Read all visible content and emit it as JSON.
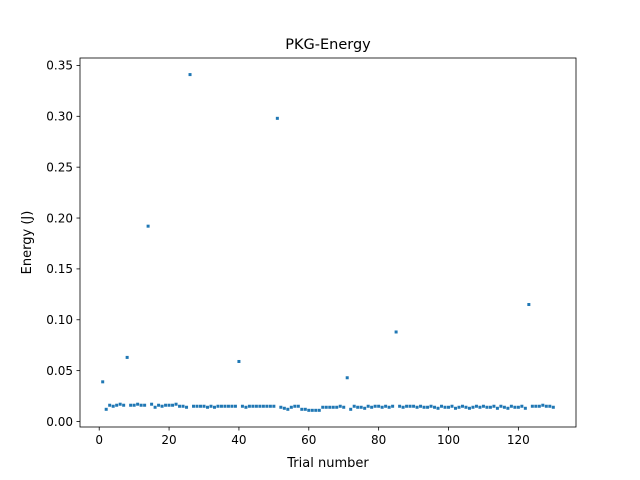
{
  "chart_data": {
    "type": "scatter",
    "title": "PKG-Energy",
    "xlabel": "Trial number",
    "ylabel": "Energy (J)",
    "xlim": [
      -5.5,
      136.5
    ],
    "ylim": [
      -0.0054,
      0.3573
    ],
    "xticks": [
      0,
      20,
      40,
      60,
      80,
      100,
      120
    ],
    "yticks": [
      0.0,
      0.05,
      0.1,
      0.15,
      0.2,
      0.25,
      0.3,
      0.35
    ],
    "ytick_labels": [
      "0.00",
      "0.05",
      "0.10",
      "0.15",
      "0.20",
      "0.25",
      "0.30",
      "0.35"
    ],
    "grid": false,
    "marker_color": "#1f77b4",
    "x": [
      1,
      2,
      3,
      4,
      5,
      6,
      7,
      8,
      9,
      10,
      11,
      12,
      13,
      14,
      15,
      16,
      17,
      18,
      19,
      20,
      21,
      22,
      23,
      24,
      25,
      26,
      27,
      28,
      29,
      30,
      31,
      32,
      33,
      34,
      35,
      36,
      37,
      38,
      39,
      40,
      41,
      42,
      43,
      44,
      45,
      46,
      47,
      48,
      49,
      50,
      51,
      52,
      53,
      54,
      55,
      56,
      57,
      58,
      59,
      60,
      61,
      62,
      63,
      64,
      65,
      66,
      67,
      68,
      69,
      70,
      71,
      72,
      73,
      74,
      75,
      76,
      77,
      78,
      79,
      80,
      81,
      82,
      83,
      84,
      85,
      86,
      87,
      88,
      89,
      90,
      91,
      92,
      93,
      94,
      95,
      96,
      97,
      98,
      99,
      100,
      101,
      102,
      103,
      104,
      105,
      106,
      107,
      108,
      109,
      110,
      111,
      112,
      113,
      114,
      115,
      116,
      117,
      118,
      119,
      120,
      121,
      122,
      123,
      124,
      125,
      126,
      127,
      128,
      129,
      130
    ],
    "y": [
      0.039,
      0.012,
      0.016,
      0.015,
      0.016,
      0.017,
      0.016,
      0.063,
      0.016,
      0.016,
      0.017,
      0.016,
      0.016,
      0.192,
      0.017,
      0.014,
      0.016,
      0.015,
      0.016,
      0.016,
      0.016,
      0.017,
      0.015,
      0.015,
      0.014,
      0.341,
      0.015,
      0.015,
      0.015,
      0.015,
      0.014,
      0.015,
      0.014,
      0.015,
      0.015,
      0.015,
      0.015,
      0.015,
      0.015,
      0.059,
      0.015,
      0.014,
      0.015,
      0.015,
      0.015,
      0.015,
      0.015,
      0.015,
      0.015,
      0.015,
      0.298,
      0.014,
      0.013,
      0.012,
      0.014,
      0.015,
      0.015,
      0.012,
      0.012,
      0.011,
      0.011,
      0.011,
      0.011,
      0.014,
      0.014,
      0.014,
      0.014,
      0.014,
      0.015,
      0.014,
      0.043,
      0.012,
      0.015,
      0.014,
      0.014,
      0.013,
      0.015,
      0.014,
      0.015,
      0.015,
      0.014,
      0.015,
      0.014,
      0.015,
      0.088,
      0.015,
      0.014,
      0.015,
      0.015,
      0.015,
      0.014,
      0.015,
      0.014,
      0.014,
      0.015,
      0.014,
      0.013,
      0.015,
      0.014,
      0.014,
      0.015,
      0.013,
      0.014,
      0.015,
      0.014,
      0.013,
      0.014,
      0.015,
      0.014,
      0.015,
      0.014,
      0.014,
      0.015,
      0.013,
      0.015,
      0.014,
      0.013,
      0.015,
      0.014,
      0.014,
      0.015,
      0.013,
      0.115,
      0.015,
      0.015,
      0.015,
      0.016,
      0.015,
      0.015,
      0.014
    ]
  }
}
